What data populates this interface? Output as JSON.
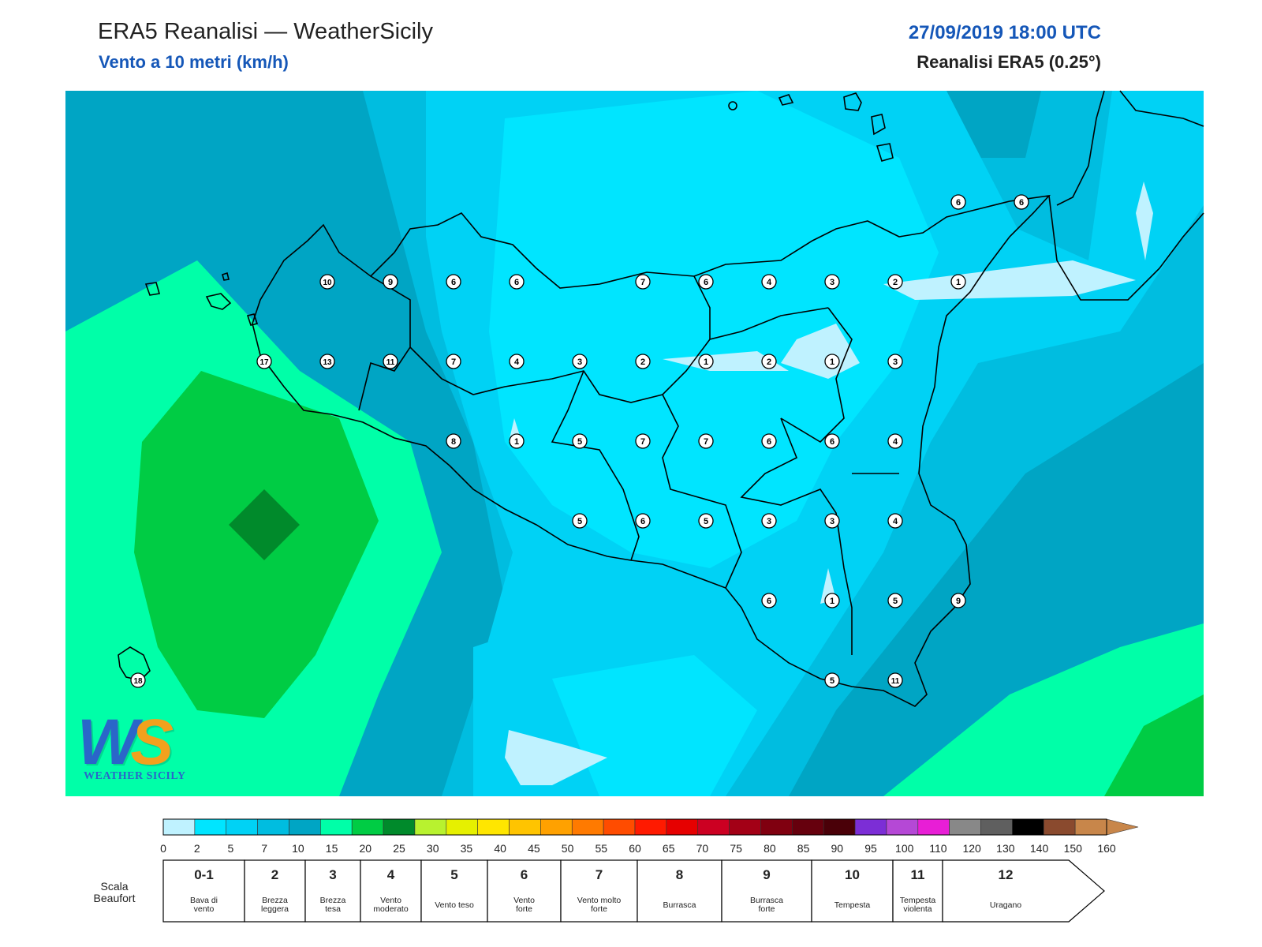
{
  "header": {
    "title": "ERA5 Reanalisi — WeatherSicily",
    "subtitle": "Vento a 10 metri (km/h)",
    "date": "27/09/2019 18:00 UTC",
    "source": "Reanalisi ERA5 (0.25°)"
  },
  "logo": {
    "letters_w": "W",
    "letters_s": "S",
    "name": "WEATHER SICILY"
  },
  "stations": [
    {
      "value": "6",
      "col": 14,
      "row": -1
    },
    {
      "value": "6",
      "col": 15,
      "row": -1
    },
    {
      "value": "10",
      "col": 4,
      "row": 0
    },
    {
      "value": "9",
      "col": 5,
      "row": 0
    },
    {
      "value": "6",
      "col": 6,
      "row": 0
    },
    {
      "value": "6",
      "col": 7,
      "row": 0
    },
    {
      "value": "7",
      "col": 9,
      "row": 0
    },
    {
      "value": "6",
      "col": 10,
      "row": 0
    },
    {
      "value": "4",
      "col": 11,
      "row": 0
    },
    {
      "value": "3",
      "col": 12,
      "row": 0
    },
    {
      "value": "2",
      "col": 13,
      "row": 0
    },
    {
      "value": "1",
      "col": 14,
      "row": 0
    },
    {
      "value": "17",
      "col": 3,
      "row": 1
    },
    {
      "value": "13",
      "col": 4,
      "row": 1
    },
    {
      "value": "11",
      "col": 5,
      "row": 1
    },
    {
      "value": "7",
      "col": 6,
      "row": 1
    },
    {
      "value": "4",
      "col": 7,
      "row": 1
    },
    {
      "value": "3",
      "col": 8,
      "row": 1
    },
    {
      "value": "2",
      "col": 9,
      "row": 1
    },
    {
      "value": "1",
      "col": 10,
      "row": 1
    },
    {
      "value": "2",
      "col": 11,
      "row": 1
    },
    {
      "value": "1",
      "col": 12,
      "row": 1
    },
    {
      "value": "3",
      "col": 13,
      "row": 1
    },
    {
      "value": "8",
      "col": 6,
      "row": 2
    },
    {
      "value": "1",
      "col": 7,
      "row": 2
    },
    {
      "value": "5",
      "col": 8,
      "row": 2
    },
    {
      "value": "7",
      "col": 9,
      "row": 2
    },
    {
      "value": "7",
      "col": 10,
      "row": 2
    },
    {
      "value": "6",
      "col": 11,
      "row": 2
    },
    {
      "value": "6",
      "col": 12,
      "row": 2
    },
    {
      "value": "4",
      "col": 13,
      "row": 2
    },
    {
      "value": "5",
      "col": 8,
      "row": 3
    },
    {
      "value": "6",
      "col": 9,
      "row": 3
    },
    {
      "value": "5",
      "col": 10,
      "row": 3
    },
    {
      "value": "3",
      "col": 11,
      "row": 3
    },
    {
      "value": "3",
      "col": 12,
      "row": 3
    },
    {
      "value": "4",
      "col": 13,
      "row": 3
    },
    {
      "value": "6",
      "col": 11,
      "row": 4
    },
    {
      "value": "1",
      "col": 12,
      "row": 4
    },
    {
      "value": "5",
      "col": 13,
      "row": 4
    },
    {
      "value": "9",
      "col": 14,
      "row": 4
    },
    {
      "value": "18",
      "col": 1,
      "row": 5
    },
    {
      "value": "5",
      "col": 12,
      "row": 5
    },
    {
      "value": "11",
      "col": 13,
      "row": 5
    }
  ],
  "colorbar": {
    "colors": [
      "#bff2ff",
      "#00e5ff",
      "#00d2f5",
      "#00bde0",
      "#00a5c4",
      "#00ffa8",
      "#00cc44",
      "#008a2b",
      "#b8f22f",
      "#e6f000",
      "#ffe600",
      "#ffc400",
      "#ffa100",
      "#ff7a00",
      "#ff4c00",
      "#ff1a00",
      "#e60000",
      "#cc0022",
      "#a30016",
      "#800010",
      "#66000d",
      "#4a0008",
      "#7c2ed6",
      "#b548d6",
      "#e81ed6",
      "#888888",
      "#5f5f5f",
      "#000000",
      "#8a4a2e",
      "#c8864a"
    ],
    "arrow_color": "#c8864a",
    "ticks": [
      "0",
      "2",
      "5",
      "7",
      "10",
      "15",
      "20",
      "25",
      "30",
      "35",
      "40",
      "45",
      "50",
      "55",
      "60",
      "65",
      "70",
      "75",
      "80",
      "85",
      "90",
      "95",
      "100",
      "110",
      "120",
      "130",
      "140",
      "150",
      "160"
    ]
  },
  "beaufort": {
    "label_line1": "Scala",
    "label_line2": "Beaufort",
    "classes": [
      {
        "num": "0-1",
        "lines": [
          "Bava di",
          "vento"
        ]
      },
      {
        "num": "2",
        "lines": [
          "Brezza",
          "leggera"
        ]
      },
      {
        "num": "3",
        "lines": [
          "Brezza",
          "tesa"
        ]
      },
      {
        "num": "4",
        "lines": [
          "Vento",
          "moderato"
        ]
      },
      {
        "num": "5",
        "lines": [
          "Vento teso"
        ]
      },
      {
        "num": "6",
        "lines": [
          "Vento",
          "forte"
        ]
      },
      {
        "num": "7",
        "lines": [
          "Vento molto",
          "forte"
        ]
      },
      {
        "num": "8",
        "lines": [
          "Burrasca"
        ]
      },
      {
        "num": "9",
        "lines": [
          "Burrasca",
          "forte"
        ]
      },
      {
        "num": "10",
        "lines": [
          "Tempesta"
        ]
      },
      {
        "num": "11",
        "lines": [
          "Tempesta",
          "violenta"
        ]
      },
      {
        "num": "12",
        "lines": [
          "Uragano"
        ]
      }
    ]
  }
}
